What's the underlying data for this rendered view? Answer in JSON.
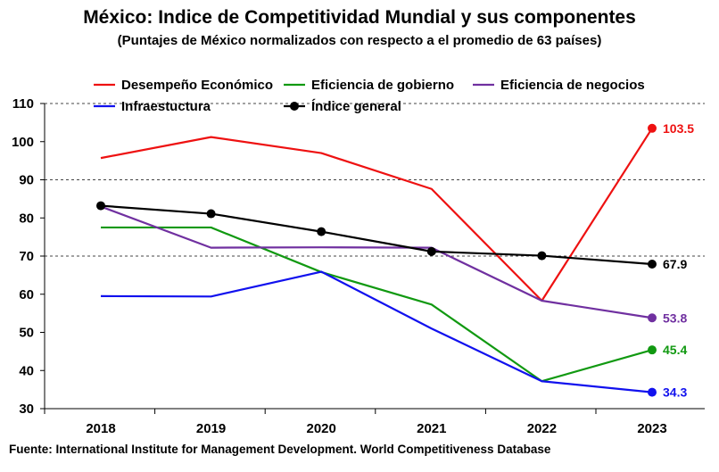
{
  "title": "México: Indice de Competitividad Mundial y sus componentes",
  "subtitle": "(Puntajes de México normalizados  con respecto a el promedio de 63 países)",
  "source": "Fuente: International Institute for Management Development. World Competitiveness Database",
  "chart_data": {
    "type": "line",
    "title": "México: Indice de Competitividad Mundial y sus componentes",
    "subtitle": "(Puntajes de México normalizados  con respecto a el promedio de 63 países)",
    "xlabel": "",
    "ylabel": "",
    "categories": [
      "2018",
      "2019",
      "2020",
      "2021",
      "2022",
      "2023"
    ],
    "ylim": [
      30,
      110
    ],
    "yticks": [
      30,
      40,
      50,
      60,
      70,
      80,
      90,
      100,
      110
    ],
    "grid": "horizontal dashed at 70, 90, 110",
    "legend_position": "top",
    "series": [
      {
        "name": "Desempeño Económico",
        "color": "#ee1111",
        "values": [
          95.7,
          101.2,
          97.0,
          87.6,
          58.3,
          103.5
        ],
        "end_label": "103.5",
        "marker": "end"
      },
      {
        "name": "Eficiencia de gobierno",
        "color": "#119911",
        "values": [
          77.5,
          77.5,
          65.8,
          57.3,
          37.2,
          45.4
        ],
        "end_label": "45.4",
        "marker": "end"
      },
      {
        "name": "Eficiencia de negocios",
        "color": "#7030a0",
        "values": [
          83.0,
          72.2,
          72.3,
          72.2,
          58.3,
          53.8
        ],
        "end_label": "53.8",
        "marker": "end"
      },
      {
        "name": "Infraestuctura",
        "color": "#1111ee",
        "values": [
          59.5,
          59.4,
          65.9,
          51.0,
          37.2,
          34.3
        ],
        "end_label": "34.3",
        "marker": "end"
      },
      {
        "name": "Índice general",
        "color": "#000000",
        "values": [
          83.2,
          81.1,
          76.4,
          71.2,
          70.1,
          67.9
        ],
        "end_label": "67.9",
        "marker": "all"
      }
    ]
  }
}
